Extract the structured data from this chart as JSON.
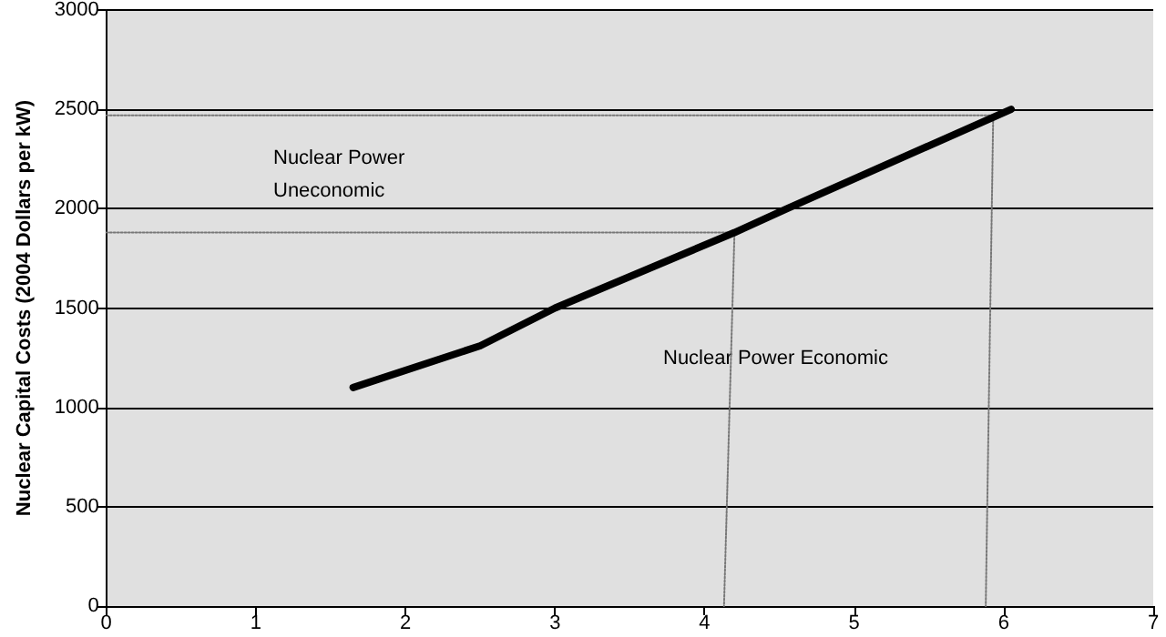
{
  "chart_data": {
    "type": "line",
    "ylabel": "Nuclear Capital Costs (2004 Dollars per kW)",
    "series": [
      {
        "color": "#000000",
        "x": [
          1.65,
          2.5,
          3,
          4.2,
          4.55,
          6.05
        ],
        "values": [
          1100,
          1310,
          1500,
          1880,
          2000,
          2500
        ],
        "line_style": "solid"
      },
      {
        "color": "#777777",
        "x": [
          0,
          4.2,
          4.13
        ],
        "values": [
          1880,
          1880,
          0
        ],
        "line_style": "dotted"
      },
      {
        "color": "#777777",
        "x": [
          0,
          5.93,
          5.88
        ],
        "values": [
          2470,
          2470,
          0
        ],
        "line_style": "dotted"
      }
    ],
    "xlim": [
      0,
      7
    ],
    "xticks": [
      0,
      1,
      2,
      3,
      4,
      5,
      6,
      7
    ],
    "ylim": [
      0,
      3000
    ],
    "yticks": [
      0,
      500,
      1000,
      1500,
      2000,
      2500,
      3000
    ],
    "grid": "y",
    "marker": "none",
    "annotations": [
      "Nuclear Power\nUneconomic",
      "Nuclear Power Economic"
    ]
  }
}
